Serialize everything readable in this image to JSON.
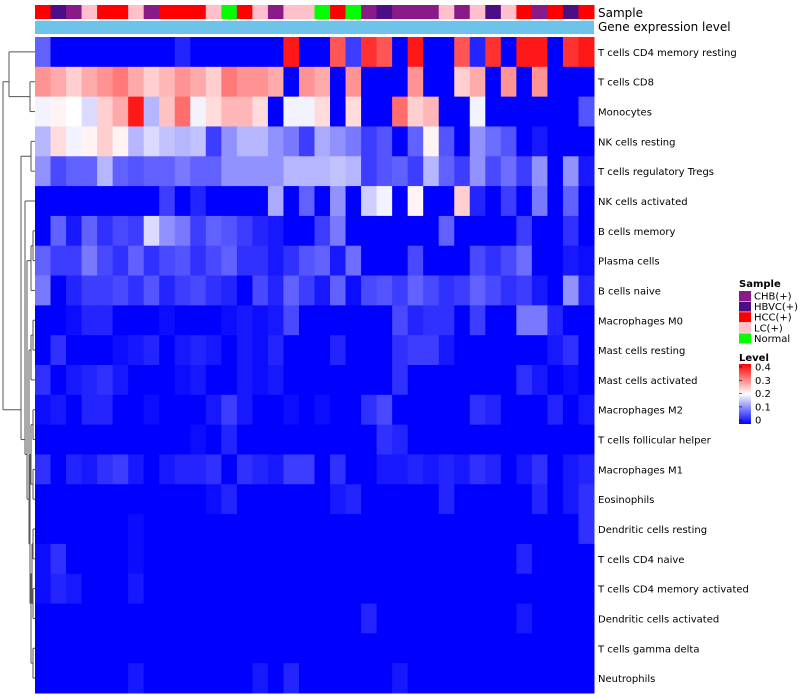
{
  "chart_data": {
    "type": "heatmap",
    "title": "",
    "annotation_tracks": [
      "Sample",
      "Gene expression level"
    ],
    "sample_legend": {
      "title": "Sample",
      "entries": [
        {
          "label": "CHB(+)",
          "color": "#8B1A89"
        },
        {
          "label": "HBVC(+)",
          "color": "#4B0E84"
        },
        {
          "label": "HCC(+)",
          "color": "#FF0000"
        },
        {
          "label": "LC(+)",
          "color": "#FFC0CB"
        },
        {
          "label": "Normal",
          "color": "#00FF00"
        }
      ]
    },
    "level_legend": {
      "title": "Level",
      "ticks": [
        "0.4",
        "0.3",
        "0.2",
        "0.1",
        "0"
      ],
      "range": [
        0,
        0.42
      ],
      "colors": [
        "#0000ff",
        "#ffffff",
        "#ff0000"
      ]
    },
    "expression_bar_color": "#6EC3EA",
    "sample_groups": [
      "HCC(+)",
      "HBVC(+)",
      "CHB(+)",
      "LC(+)",
      "HCC(+)",
      "HCC(+)",
      "LC(+)",
      "CHB(+)",
      "HCC(+)",
      "HCC(+)",
      "HCC(+)",
      "LC(+)",
      "Normal",
      "HCC(+)",
      "LC(+)",
      "CHB(+)",
      "LC(+)",
      "LC(+)",
      "Normal",
      "HCC(+)",
      "Normal",
      "CHB(+)",
      "HBVC(+)",
      "CHB(+)",
      "CHB(+)",
      "CHB(+)",
      "LC(+)",
      "CHB(+)",
      "LC(+)",
      "HBVC(+)",
      "LC(+)",
      "HCC(+)",
      "CHB(+)",
      "HCC(+)",
      "HBVC(+)",
      "HCC(+)"
    ],
    "rows": [
      "T cells CD4 memory resting",
      "T cells CD8",
      "Monocytes",
      "NK cells resting",
      "T cells regulatory  Tregs",
      "NK cells activated",
      "B cells memory",
      "Plasma cells",
      "B cells naive",
      "Macrophages M0",
      "Mast cells resting",
      "Mast cells activated",
      "Macrophages M2",
      "T cells follicular helper",
      "Macrophages M1",
      "Eosinophils",
      "Dendritic cells resting",
      "T cells CD4 naive",
      "T cells CD4 memory activated",
      "Dendritic cells activated",
      "T cells gamma delta",
      "Neutrophils"
    ],
    "values": [
      [
        0.08,
        0,
        0,
        0,
        0,
        0,
        0,
        0,
        0,
        0.03,
        0,
        0,
        0,
        0,
        0,
        0,
        0.4,
        0,
        0,
        0.35,
        0.05,
        0.38,
        0.35,
        0,
        0.4,
        0,
        0,
        0.35,
        0.03,
        0.38,
        0,
        0.4,
        0.4,
        0,
        0.38,
        0.4
      ],
      [
        0.3,
        0.28,
        0.25,
        0.28,
        0.3,
        0.32,
        0.28,
        0.25,
        0.27,
        0.3,
        0.28,
        0.25,
        0.32,
        0.3,
        0.3,
        0.28,
        0,
        0.3,
        0.28,
        0,
        0.3,
        0,
        0,
        0,
        0.3,
        0,
        0,
        0.25,
        0.28,
        0,
        0.3,
        0,
        0.3,
        0,
        0,
        0
      ],
      [
        0.2,
        0.22,
        0.21,
        0.18,
        0.25,
        0.28,
        0.4,
        0.15,
        0.26,
        0.33,
        0.2,
        0.24,
        0.27,
        0.27,
        0.24,
        0,
        0.2,
        0.2,
        0.24,
        0,
        0.24,
        0,
        0,
        0.33,
        0.25,
        0.27,
        0,
        0,
        0.2,
        0,
        0,
        0,
        0,
        0,
        0,
        0.07
      ],
      [
        0.15,
        0.24,
        0.2,
        0.22,
        0.25,
        0.22,
        0.15,
        0.18,
        0.16,
        0.15,
        0.16,
        0.05,
        0.12,
        0.15,
        0.15,
        0.12,
        0.1,
        0.05,
        0.14,
        0.12,
        0.1,
        0.05,
        0.07,
        0,
        0.08,
        0.22,
        0.07,
        0,
        0.12,
        0.09,
        0.07,
        0,
        0.02,
        0,
        0,
        0
      ],
      [
        0.12,
        0.06,
        0.08,
        0.08,
        0.15,
        0.08,
        0.07,
        0.08,
        0.08,
        0.1,
        0.08,
        0.08,
        0.12,
        0.12,
        0.12,
        0.12,
        0.15,
        0.15,
        0.15,
        0.16,
        0.15,
        0.05,
        0.07,
        0.08,
        0.05,
        0.15,
        0.08,
        0.05,
        0.12,
        0.06,
        0.09,
        0.05,
        0.12,
        0,
        0.12,
        0.02
      ],
      [
        0,
        0,
        0,
        0,
        0,
        0,
        0,
        0,
        0.05,
        0,
        0.03,
        0,
        0,
        0,
        0,
        0.14,
        0,
        0.08,
        0,
        0.12,
        0,
        0.17,
        0.2,
        0,
        0.22,
        0,
        0,
        0.25,
        0.03,
        0,
        0.05,
        0,
        0.1,
        0,
        0.08,
        0
      ],
      [
        0,
        0.08,
        0.02,
        0.08,
        0.04,
        0.06,
        0.05,
        0.18,
        0.12,
        0.1,
        0.05,
        0.08,
        0.07,
        0.05,
        0.03,
        0.02,
        0,
        0,
        0.05,
        0.1,
        0,
        0,
        0,
        0,
        0,
        0,
        0.08,
        0,
        0,
        0,
        0,
        0.05,
        0,
        0,
        0.04,
        0
      ],
      [
        0.08,
        0.05,
        0.05,
        0.1,
        0.06,
        0.04,
        0.08,
        0.04,
        0.06,
        0.07,
        0.04,
        0.06,
        0.08,
        0.04,
        0.04,
        0.02,
        0.04,
        0.07,
        0.08,
        0.02,
        0.09,
        0,
        0,
        0,
        0.06,
        0,
        0,
        0,
        0.06,
        0.04,
        0.06,
        0.09,
        0,
        0,
        0.02,
        0.01
      ],
      [
        0.1,
        0,
        0.03,
        0.05,
        0.05,
        0.06,
        0.04,
        0.07,
        0.03,
        0.05,
        0.06,
        0.04,
        0.03,
        0,
        0.06,
        0.03,
        0.08,
        0.05,
        0.02,
        0.08,
        0.01,
        0.06,
        0.07,
        0.05,
        0.08,
        0.06,
        0.04,
        0.05,
        0.08,
        0.06,
        0.04,
        0.05,
        0.02,
        0,
        0.12,
        0.03
      ],
      [
        0,
        0,
        0.01,
        0.03,
        0.03,
        0,
        0,
        0,
        0.01,
        0,
        0,
        0,
        0.01,
        0.02,
        0.01,
        0.02,
        0.06,
        0,
        0,
        0,
        0,
        0,
        0,
        0.06,
        0.03,
        0.04,
        0.04,
        0,
        0.05,
        0,
        0,
        0.1,
        0.1,
        0.03,
        0,
        0
      ],
      [
        0,
        0.04,
        0,
        0,
        0,
        0.01,
        0.02,
        0.03,
        0,
        0.02,
        0.03,
        0.02,
        0,
        0.02,
        0.01,
        0.03,
        0,
        0,
        0,
        0.03,
        0,
        0,
        0,
        0.04,
        0.05,
        0.05,
        0.02,
        0,
        0,
        0,
        0,
        0,
        0,
        0.02,
        0.04,
        0
      ],
      [
        0.04,
        0,
        0.02,
        0.03,
        0.04,
        0.02,
        0,
        0,
        0,
        0.01,
        0.02,
        0,
        0,
        0.02,
        0.01,
        0.02,
        0,
        0,
        0,
        0,
        0,
        0,
        0,
        0.04,
        0,
        0,
        0,
        0,
        0,
        0,
        0,
        0.04,
        0.02,
        0,
        0.01,
        0
      ],
      [
        0.01,
        0.02,
        0,
        0.03,
        0.03,
        0,
        0,
        0.01,
        0,
        0,
        0,
        0.02,
        0.05,
        0.02,
        0,
        0,
        0.01,
        0,
        0.01,
        0,
        0,
        0.04,
        0.06,
        0,
        0,
        0,
        0,
        0,
        0.04,
        0.03,
        0,
        0,
        0,
        0.03,
        0,
        0.02
      ],
      [
        0,
        0,
        0,
        0,
        0,
        0,
        0,
        0,
        0,
        0,
        0.01,
        0,
        0.03,
        0,
        0,
        0,
        0,
        0,
        0,
        0,
        0,
        0,
        0.04,
        0.03,
        0,
        0,
        0,
        0,
        0,
        0,
        0,
        0,
        0,
        0,
        0,
        0
      ],
      [
        0.04,
        0,
        0.03,
        0.02,
        0.04,
        0.05,
        0.02,
        0,
        0.02,
        0.03,
        0.03,
        0.04,
        0,
        0.04,
        0.03,
        0.02,
        0.05,
        0.05,
        0,
        0.04,
        0,
        0,
        0.02,
        0.02,
        0.03,
        0.02,
        0.03,
        0.02,
        0.04,
        0.03,
        0,
        0.02,
        0.04,
        0,
        0.02,
        0.03
      ],
      [
        0,
        0,
        0,
        0,
        0,
        0,
        0,
        0,
        0,
        0,
        0,
        0.01,
        0.03,
        0,
        0,
        0,
        0,
        0,
        0,
        0.02,
        0.03,
        0,
        0,
        0,
        0,
        0,
        0.03,
        0,
        0,
        0,
        0,
        0,
        0.03,
        0,
        0.02,
        0.04
      ],
      [
        0,
        0,
        0,
        0,
        0,
        0,
        0.01,
        0,
        0,
        0,
        0,
        0,
        0,
        0,
        0,
        0,
        0,
        0,
        0,
        0,
        0,
        0,
        0,
        0,
        0,
        0,
        0,
        0,
        0,
        0,
        0,
        0,
        0,
        0,
        0,
        0.04
      ],
      [
        0.01,
        0.04,
        0,
        0,
        0,
        0,
        0.01,
        0,
        0,
        0,
        0,
        0,
        0,
        0,
        0,
        0,
        0,
        0,
        0,
        0,
        0,
        0,
        0,
        0,
        0,
        0,
        0,
        0,
        0,
        0,
        0,
        0.03,
        0,
        0,
        0,
        0
      ],
      [
        0.01,
        0.03,
        0.02,
        0,
        0,
        0,
        0.02,
        0,
        0,
        0,
        0,
        0,
        0,
        0,
        0,
        0,
        0,
        0,
        0,
        0,
        0,
        0,
        0,
        0,
        0,
        0,
        0,
        0,
        0,
        0,
        0,
        0,
        0,
        0,
        0,
        0
      ],
      [
        0,
        0,
        0,
        0,
        0,
        0,
        0,
        0,
        0,
        0,
        0,
        0,
        0,
        0,
        0,
        0,
        0,
        0,
        0,
        0,
        0,
        0.03,
        0,
        0,
        0,
        0,
        0,
        0,
        0,
        0,
        0,
        0.02,
        0,
        0,
        0,
        0
      ],
      [
        0,
        0,
        0,
        0,
        0,
        0,
        0,
        0,
        0,
        0,
        0,
        0,
        0,
        0,
        0,
        0,
        0,
        0,
        0,
        0,
        0,
        0,
        0,
        0,
        0,
        0,
        0,
        0,
        0,
        0,
        0,
        0,
        0,
        0,
        0,
        0
      ],
      [
        0,
        0,
        0,
        0,
        0,
        0,
        0.02,
        0,
        0,
        0,
        0,
        0,
        0,
        0,
        0.02,
        0,
        0.03,
        0,
        0,
        0,
        0,
        0,
        0,
        0.02,
        0,
        0,
        0,
        0,
        0,
        0,
        0,
        0,
        0,
        0,
        0,
        0
      ]
    ]
  }
}
